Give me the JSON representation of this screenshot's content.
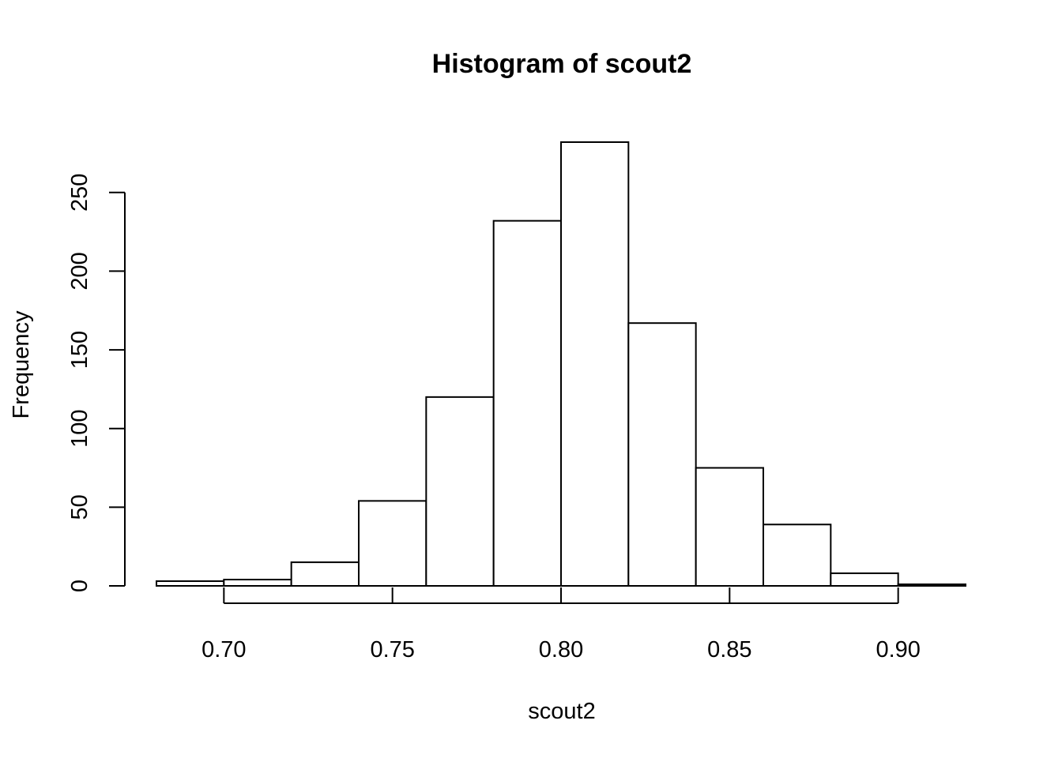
{
  "chart_data": {
    "type": "bar",
    "title": "Histogram of scout2",
    "xlabel": "scout2",
    "ylabel": "Frequency",
    "bin_edges": [
      0.68,
      0.7,
      0.72,
      0.74,
      0.76,
      0.78,
      0.8,
      0.82,
      0.84,
      0.86,
      0.88,
      0.9,
      0.92
    ],
    "values": [
      3,
      4,
      15,
      54,
      120,
      232,
      282,
      167,
      75,
      39,
      8,
      1
    ],
    "xlim": [
      0.68,
      0.92
    ],
    "ylim": [
      0,
      282
    ],
    "x_ticks": [
      0.7,
      0.75,
      0.8,
      0.85,
      0.9
    ],
    "x_tick_labels": [
      "0.70",
      "0.75",
      "0.80",
      "0.85",
      "0.90"
    ],
    "y_ticks": [
      0,
      50,
      100,
      150,
      200,
      250
    ],
    "y_tick_labels": [
      "0",
      "50",
      "100",
      "150",
      "200",
      "250"
    ],
    "grid": false,
    "legend": "none",
    "colors": {
      "bar_fill": "#ffffff",
      "bar_stroke": "#000000"
    }
  }
}
